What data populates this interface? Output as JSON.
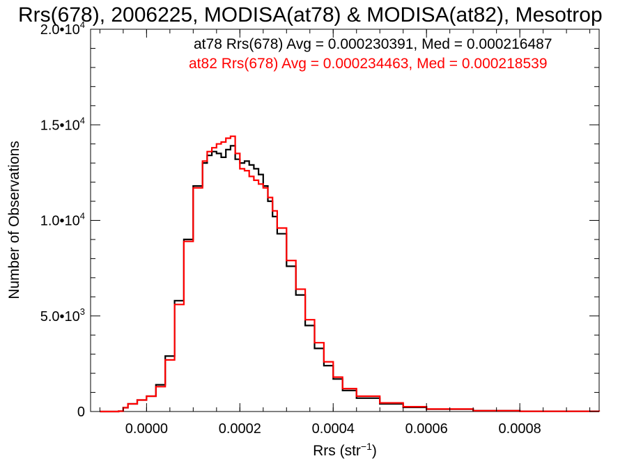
{
  "chart_data": {
    "type": "line",
    "title": "Rrs(678), 2006225, MODISA(at78) & MODISA(at82), Mesotrop",
    "xlabel": "Rrs (str",
    "xlabel_sup": "−1",
    "xlabel_close": ")",
    "ylabel": "Number of Observations",
    "xlim": [
      -0.00012,
      0.00097
    ],
    "ylim": [
      0,
      20000
    ],
    "x_ticks": [
      {
        "value": 0.0,
        "label": "0.0000"
      },
      {
        "value": 0.0002,
        "label": "0.0002"
      },
      {
        "value": 0.0004,
        "label": "0.0004"
      },
      {
        "value": 0.0006,
        "label": "0.0006"
      },
      {
        "value": 0.0008,
        "label": "0.0008"
      }
    ],
    "y_ticks": [
      {
        "value": 0,
        "mant": "0",
        "exp": ""
      },
      {
        "value": 5000,
        "mant": "5.0•10",
        "exp": "3"
      },
      {
        "value": 10000,
        "mant": "1.0•10",
        "exp": "4"
      },
      {
        "value": 15000,
        "mant": "1.5•10",
        "exp": "4"
      },
      {
        "value": 20000,
        "mant": "2.0•10",
        "exp": "4"
      }
    ],
    "grid": false,
    "legend_position": "top-right",
    "series": [
      {
        "name": "at78",
        "color": "#000000",
        "legend": "at78 Rrs(678) Avg = 0.000230391, Med = 0.000216487",
        "x": [
          -0.0001,
          -6e-05,
          -5e-05,
          -4e-05,
          -2e-05,
          0.0,
          2e-05,
          4e-05,
          6e-05,
          8e-05,
          0.0001,
          0.00012,
          0.00013,
          0.00014,
          0.00015,
          0.00016,
          0.00017,
          0.00018,
          0.00019,
          0.0002,
          0.00021,
          0.00022,
          0.00023,
          0.00024,
          0.00025,
          0.00026,
          0.00027,
          0.00028,
          0.0003,
          0.00032,
          0.00034,
          0.00036,
          0.00038,
          0.0004,
          0.00042,
          0.00045,
          0.0005,
          0.00055,
          0.0006,
          0.0007,
          0.0008,
          0.00097
        ],
        "y": [
          0,
          20,
          200,
          400,
          600,
          800,
          1400,
          2900,
          5800,
          9000,
          11800,
          13000,
          13400,
          13600,
          13500,
          13300,
          13700,
          13900,
          13200,
          13000,
          13100,
          12900,
          12700,
          12400,
          11800,
          11000,
          10200,
          9300,
          7600,
          6100,
          4500,
          3300,
          2400,
          1700,
          1100,
          700,
          400,
          220,
          120,
          40,
          10,
          0
        ]
      },
      {
        "name": "at82",
        "color": "#ff0000",
        "legend": "at82 Rrs(678) Avg = 0.000234463, Med = 0.000218539",
        "x": [
          -0.0001,
          -6e-05,
          -5e-05,
          -4e-05,
          -2e-05,
          0.0,
          2e-05,
          4e-05,
          6e-05,
          8e-05,
          0.0001,
          0.00012,
          0.00013,
          0.00014,
          0.00015,
          0.00016,
          0.00017,
          0.00018,
          0.00019,
          0.0002,
          0.00021,
          0.00022,
          0.00023,
          0.00024,
          0.00025,
          0.00026,
          0.00027,
          0.00028,
          0.0003,
          0.00032,
          0.00034,
          0.00036,
          0.00038,
          0.0004,
          0.00042,
          0.00045,
          0.0005,
          0.00055,
          0.0006,
          0.0007,
          0.0008,
          0.00097
        ],
        "y": [
          0,
          20,
          200,
          400,
          600,
          800,
          1300,
          2700,
          5600,
          8900,
          11700,
          13100,
          13600,
          13800,
          14000,
          14100,
          14300,
          14400,
          13500,
          12700,
          12600,
          12300,
          12100,
          11900,
          11700,
          11200,
          10500,
          9600,
          7900,
          6400,
          4800,
          3600,
          2600,
          1800,
          1200,
          800,
          450,
          250,
          130,
          45,
          10,
          0
        ]
      }
    ]
  }
}
